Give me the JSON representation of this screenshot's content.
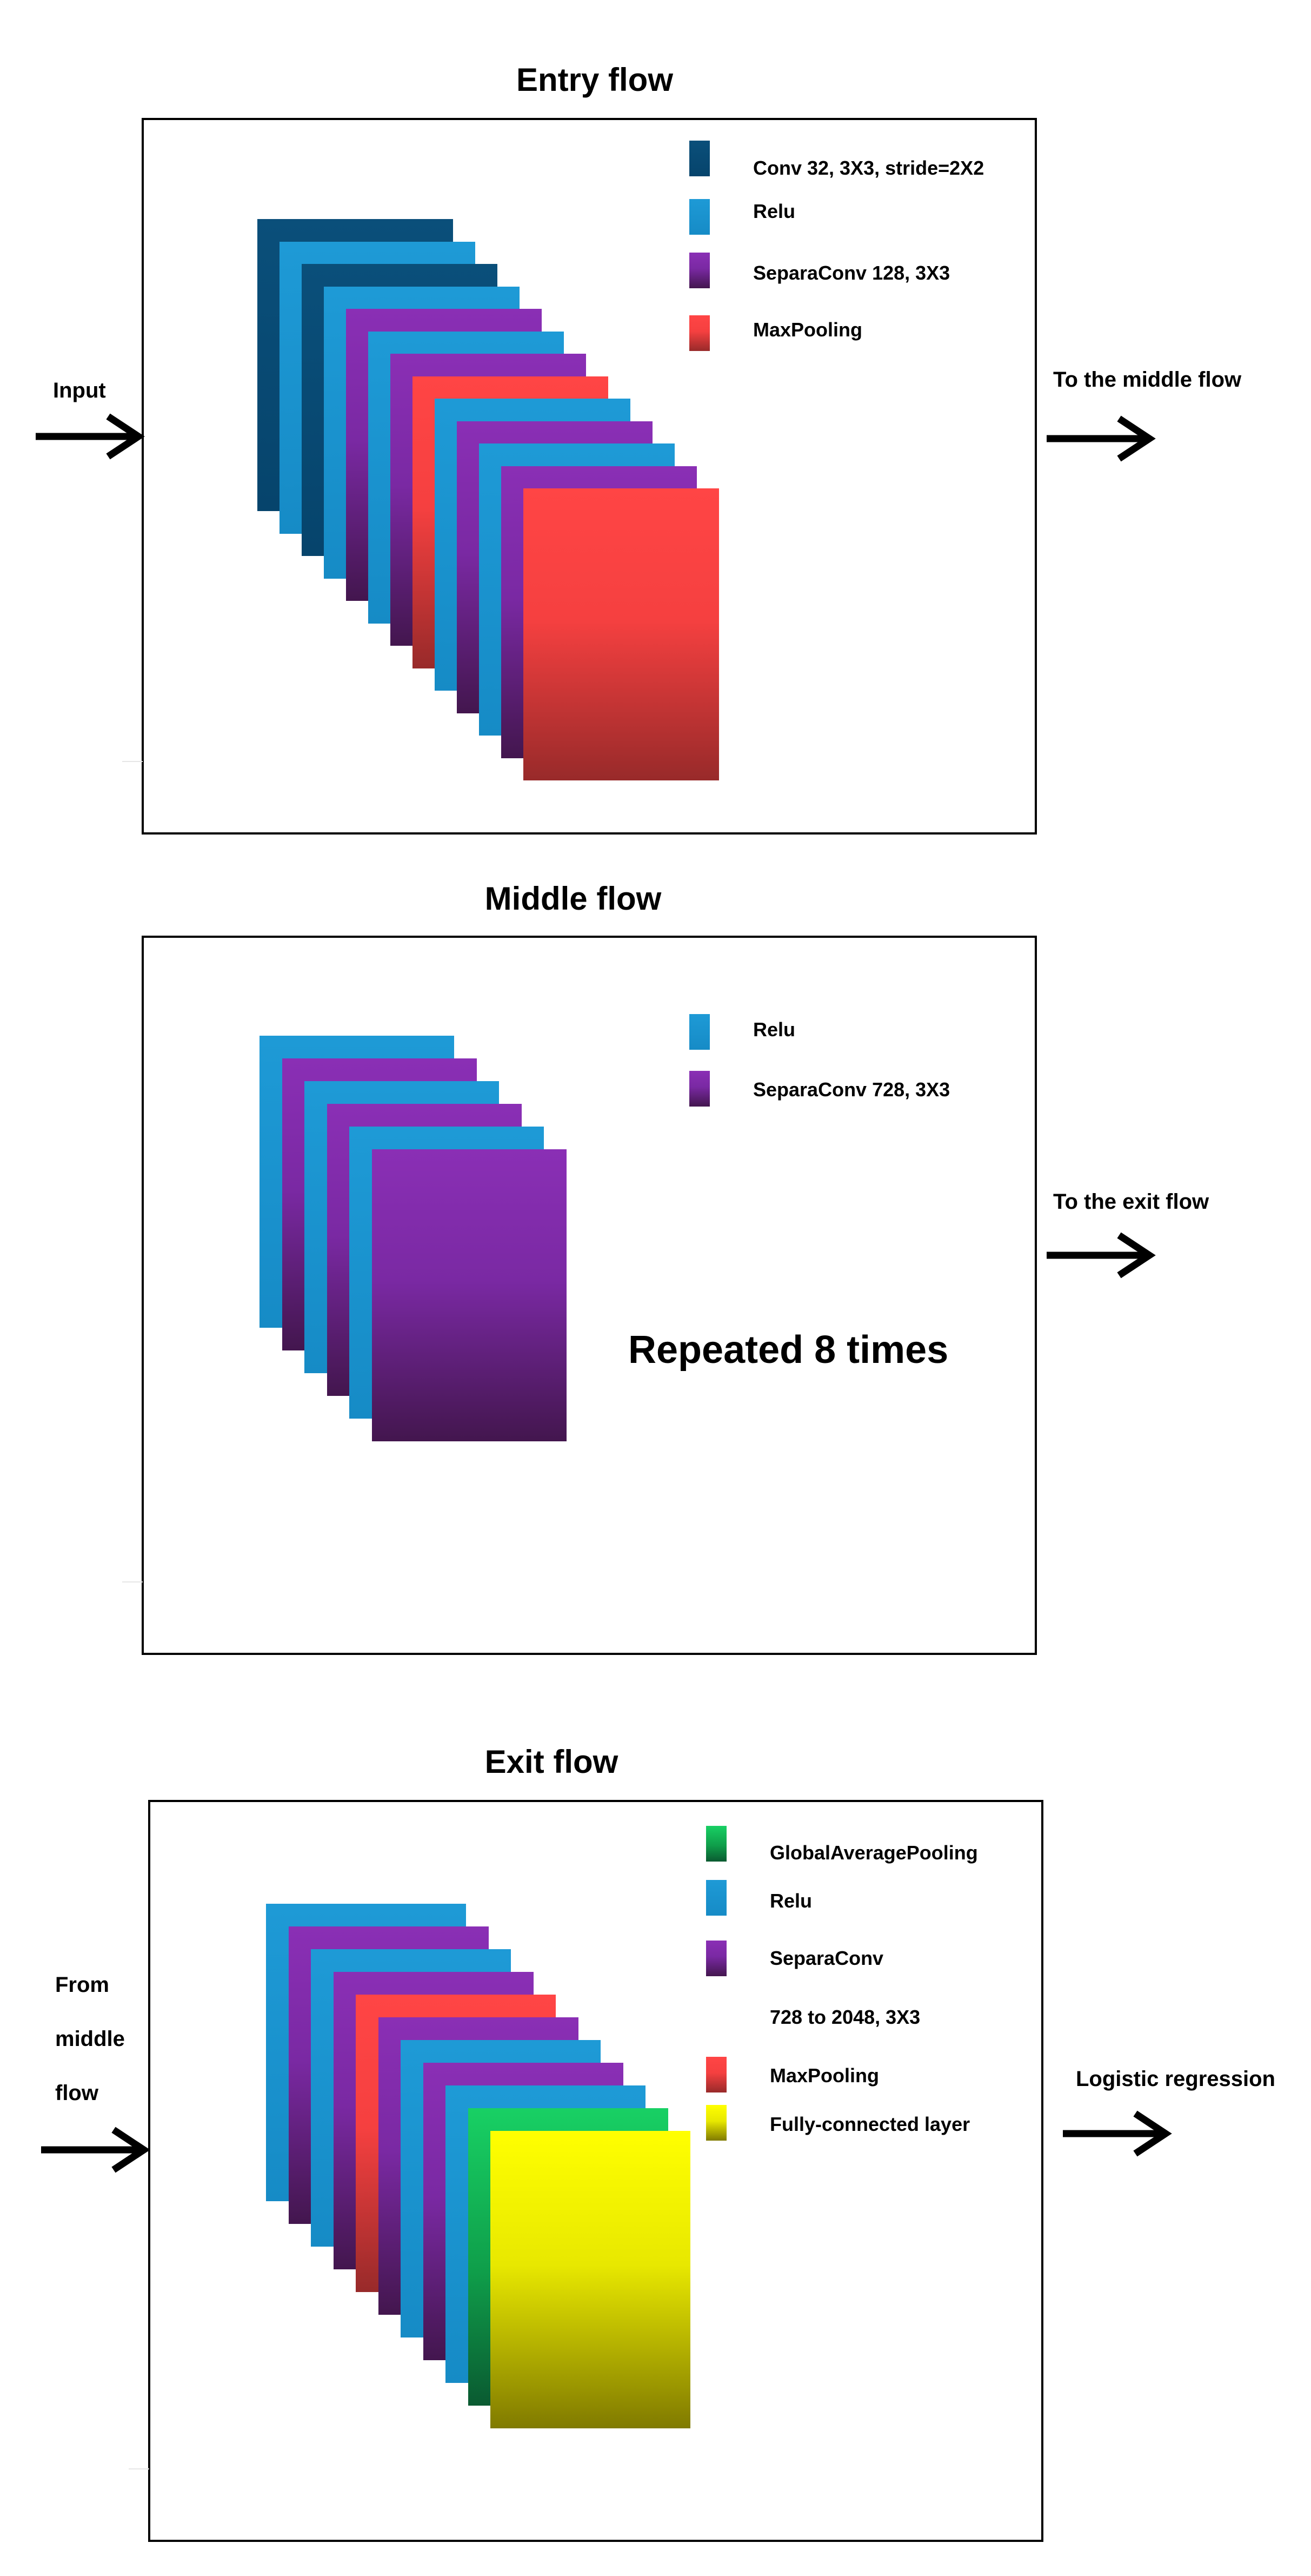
{
  "colors": {
    "conv": "#06446c",
    "relu": "#1e9ad6",
    "separaconv": "#7a29a3",
    "maxpooling": "#f54040",
    "global_average_pooling": "#0f9e4a",
    "fully_connected": "#e8e800"
  },
  "entry": {
    "title": "Entry flow",
    "input_label": "Input",
    "output_label": "To the middle flow",
    "legend": [
      {
        "label": "Conv 32, 3X3, stride=2X2",
        "color": "conv"
      },
      {
        "label": "Relu",
        "color": "relu"
      },
      {
        "label": "SeparaConv 128, 3X3",
        "color": "separaconv"
      },
      {
        "label": "MaxPooling",
        "color": "maxpooling"
      }
    ],
    "layers": [
      "conv",
      "relu",
      "conv",
      "relu",
      "separaconv",
      "relu",
      "separaconv",
      "maxpooling",
      "relu",
      "separaconv",
      "relu",
      "separaconv",
      "maxpooling"
    ]
  },
  "middle": {
    "title": "Middle flow",
    "output_label": "To the exit flow",
    "repeat_label": "Repeated 8 times",
    "legend": [
      {
        "label": "Relu",
        "color": "relu"
      },
      {
        "label": "SeparaConv 728, 3X3",
        "color": "separaconv"
      }
    ],
    "layers": [
      "relu",
      "separaconv",
      "relu",
      "separaconv",
      "relu",
      "separaconv"
    ]
  },
  "exit": {
    "title": "Exit flow",
    "input_label_lines": [
      "From",
      "middle",
      "flow"
    ],
    "output_label": "Logistic regression",
    "legend": [
      {
        "label": "GlobalAveragePooling",
        "color": "global_average_pooling"
      },
      {
        "label": "Relu",
        "color": "relu"
      },
      {
        "label": "SeparaConv",
        "color": "separaconv"
      },
      {
        "label": "728 to 2048, 3X3",
        "color": null
      },
      {
        "label": "MaxPooling",
        "color": "maxpooling"
      },
      {
        "label": "Fully-connected layer",
        "color": "fully_connected"
      }
    ],
    "layers": [
      "relu",
      "separaconv",
      "relu",
      "separaconv",
      "maxpooling",
      "separaconv",
      "relu",
      "separaconv",
      "relu",
      "global_average_pooling",
      "fully_connected"
    ]
  }
}
